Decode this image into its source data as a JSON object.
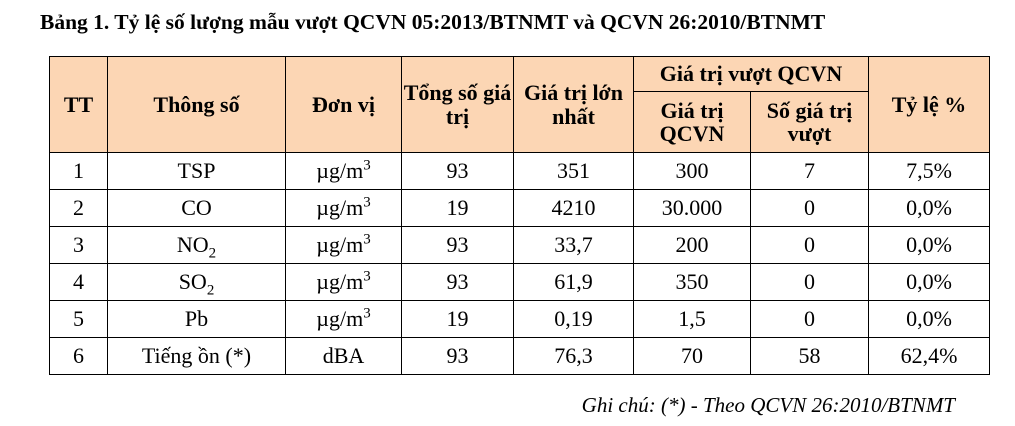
{
  "title": "Bảng 1. Tỷ lệ số lượng mẫu vượt QCVN 05:2013/BTNMT và QCVN 26:2010/BTNMT",
  "table": {
    "headers": {
      "tt": "TT",
      "param": "Thông số",
      "unit": "Đơn vị",
      "total": "Tổng số giá trị",
      "max": "Giá trị lớn nhất",
      "exceed_group": "Giá trị vượt QCVN",
      "qcvn_value": "Giá trị QCVN",
      "exceed_count": "Số giá trị vượt",
      "ratio": "Tỷ lệ %"
    },
    "rows": [
      {
        "tt": "1",
        "param": "TSP",
        "param_sub": "",
        "unit": "µg/m",
        "unit_sup": "3",
        "total": "93",
        "max": "351",
        "qcvn": "300",
        "exceed": "7",
        "ratio": "7,5%"
      },
      {
        "tt": "2",
        "param": "CO",
        "param_sub": "",
        "unit": "µg/m",
        "unit_sup": "3",
        "total": "19",
        "max": "4210",
        "qcvn": "30.000",
        "exceed": "0",
        "ratio": "0,0%"
      },
      {
        "tt": "3",
        "param": "NO",
        "param_sub": "2",
        "unit": "µg/m",
        "unit_sup": "3",
        "total": "93",
        "max": "33,7",
        "qcvn": "200",
        "exceed": "0",
        "ratio": "0,0%"
      },
      {
        "tt": "4",
        "param": "SO",
        "param_sub": "2",
        "unit": "µg/m",
        "unit_sup": "3",
        "total": "93",
        "max": "61,9",
        "qcvn": "350",
        "exceed": "0",
        "ratio": "0,0%"
      },
      {
        "tt": "5",
        "param": "Pb",
        "param_sub": "",
        "unit": "µg/m",
        "unit_sup": "3",
        "total": "19",
        "max": "0,19",
        "qcvn": "1,5",
        "exceed": "0",
        "ratio": "0,0%"
      },
      {
        "tt": "6",
        "param": "Tiếng ồn (*)",
        "param_sub": "",
        "unit": "dBA",
        "unit_sup": "",
        "total": "93",
        "max": "76,3",
        "qcvn": "70",
        "exceed": "58",
        "ratio": "62,4%"
      }
    ]
  },
  "note": "Ghi chú: (*) - Theo QCVN 26:2010/BTNMT",
  "colors": {
    "header_bg": "#fcd6b4"
  }
}
